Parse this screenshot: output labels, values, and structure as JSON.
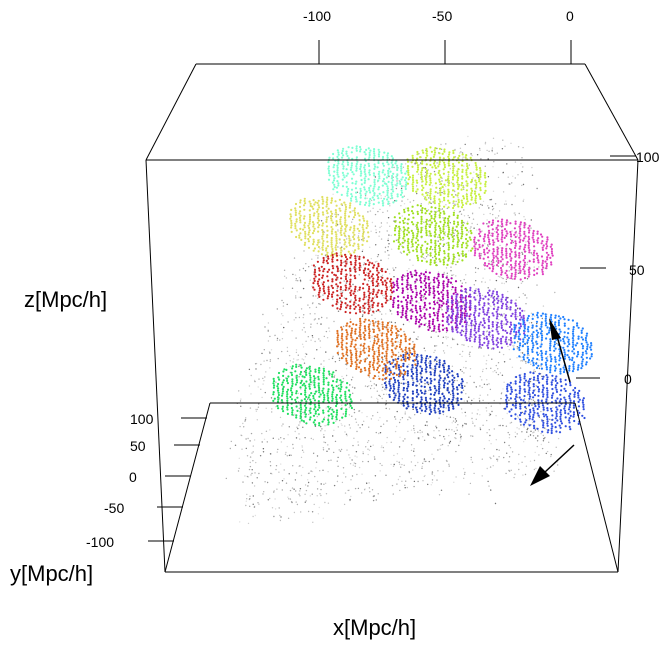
{
  "chart_data": {
    "type": "scatter",
    "projection": "3d-box",
    "axes": {
      "x": {
        "label": "x[Mpc/h]",
        "ticks": [
          "-100",
          "-50",
          "0"
        ],
        "tick_values": [
          -100,
          -50,
          0
        ]
      },
      "y": {
        "label": "y[Mpc/h]",
        "ticks": [
          "100",
          "50",
          "0",
          "-50",
          "-100"
        ],
        "tick_values": [
          100,
          50,
          0,
          -50,
          -100
        ]
      },
      "z": {
        "label": "z[Mpc/h]",
        "ticks": [
          "100",
          "50",
          "0"
        ],
        "tick_values": [
          100,
          50,
          0
        ]
      }
    },
    "background_points": {
      "color": "#000000",
      "description": "galaxy distribution, faint black dots"
    },
    "series": [
      {
        "color": "#7fffd4",
        "center_estimate": {
          "x": -75,
          "y": 40,
          "z": 75
        }
      },
      {
        "color": "#c8f040",
        "center_estimate": {
          "x": -45,
          "y": 30,
          "z": 80
        }
      },
      {
        "color": "#a0e020",
        "center_estimate": {
          "x": -55,
          "y": 10,
          "z": 55
        }
      },
      {
        "color": "#e0e060",
        "center_estimate": {
          "x": -95,
          "y": 20,
          "z": 55
        }
      },
      {
        "color": "#cc2222",
        "center_estimate": {
          "x": -90,
          "y": 0,
          "z": 30
        }
      },
      {
        "color": "#aa00aa",
        "center_estimate": {
          "x": -60,
          "y": -10,
          "z": 25
        }
      },
      {
        "color": "#8040e0",
        "center_estimate": {
          "x": -40,
          "y": -20,
          "z": 20
        }
      },
      {
        "color": "#e040c0",
        "center_estimate": {
          "x": -20,
          "y": 20,
          "z": 40
        }
      },
      {
        "color": "#2080ff",
        "center_estimate": {
          "x": -15,
          "y": -30,
          "z": 10
        }
      },
      {
        "color": "#2040c0",
        "center_estimate": {
          "x": -70,
          "y": -40,
          "z": -10
        }
      },
      {
        "color": "#e07020",
        "center_estimate": {
          "x": -85,
          "y": -20,
          "z": 0
        }
      },
      {
        "color": "#20e060",
        "center_estimate": {
          "x": -120,
          "y": -60,
          "z": -5
        }
      },
      {
        "color": "#3050e0",
        "center_estimate": {
          "x": -25,
          "y": -60,
          "z": -10
        }
      }
    ],
    "annotations": [
      "arrow pointing up-left near z-axis",
      "arrow pointing down-left near x-axis"
    ],
    "grid": false,
    "legend": "none"
  }
}
